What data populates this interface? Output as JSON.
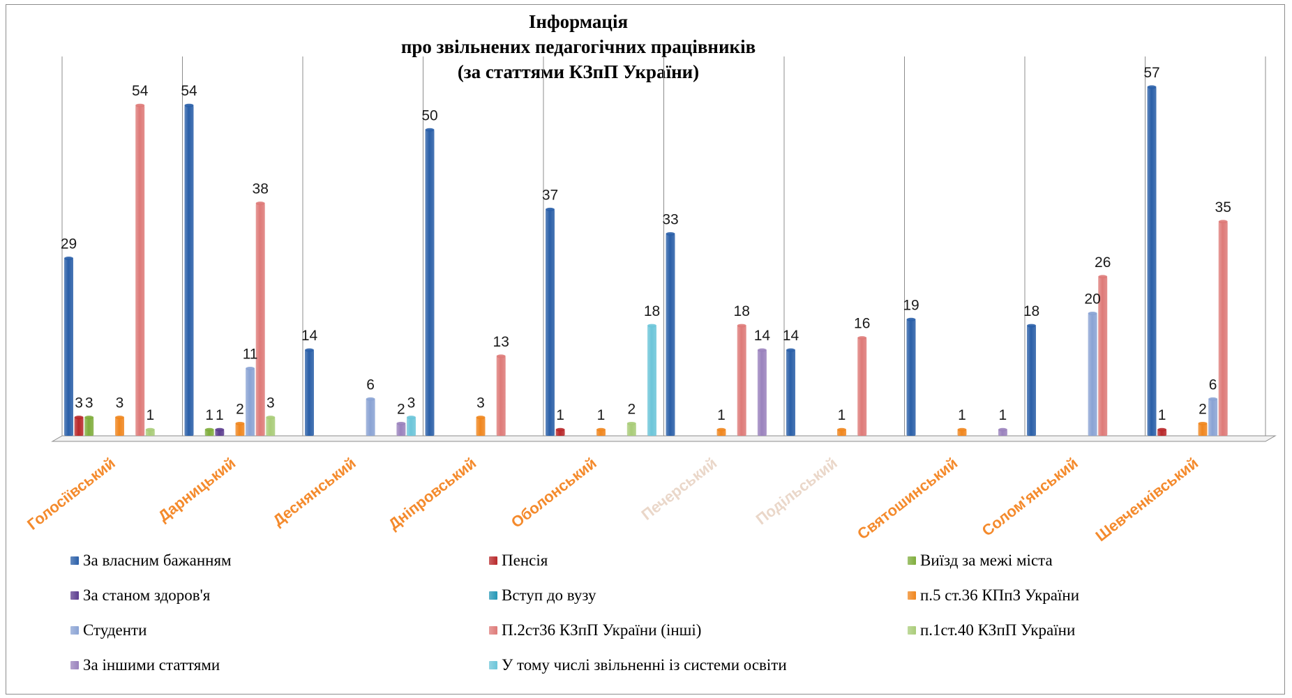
{
  "chart_data": {
    "type": "bar",
    "title_lines": [
      "Інформація",
      "про звільнених педагогічних працівників",
      "(за статтями КЗпП України)"
    ],
    "categories": [
      "Голосіївський",
      "Дарницький",
      "Деснянський",
      "Дніпровський",
      "Оболонський",
      "Печерський",
      "Подільський",
      "Святошинський",
      "Солом'янський",
      "Шевченківський"
    ],
    "category_colors": [
      "#f48a2c",
      "#f48a2c",
      "#f48a2c",
      "#f48a2c",
      "#f48a2c",
      "#ead7c9",
      "#ead7c9",
      "#f48a2c",
      "#f48a2c",
      "#f48a2c"
    ],
    "series": [
      {
        "name": "За власним бажанням",
        "color": "#2a5fa8",
        "values": [
          29,
          54,
          14,
          50,
          37,
          33,
          14,
          19,
          18,
          57
        ]
      },
      {
        "name": "Пенсія",
        "color": "#b8282a",
        "values": [
          3,
          0,
          0,
          0,
          1,
          0,
          0,
          0,
          0,
          1
        ]
      },
      {
        "name": "Виїзд за межі міста",
        "color": "#7fad3c",
        "values": [
          3,
          1,
          0,
          0,
          0,
          0,
          0,
          0,
          0,
          0
        ]
      },
      {
        "name": "За станом здоров'я",
        "color": "#5c3d8f",
        "values": [
          0,
          1,
          0,
          0,
          0,
          0,
          0,
          0,
          0,
          0
        ]
      },
      {
        "name": "Вступ до вузу",
        "color": "#2497b6",
        "values": [
          0,
          0,
          0,
          0,
          0,
          0,
          0,
          0,
          0,
          0
        ]
      },
      {
        "name": "п.5 ст.36 КПпЗ України",
        "color": "#f0861e",
        "values": [
          3,
          2,
          0,
          3,
          1,
          1,
          1,
          1,
          0,
          2
        ]
      },
      {
        "name": "Студенти",
        "color": "#8aa3d4",
        "values": [
          0,
          11,
          6,
          0,
          0,
          0,
          0,
          0,
          20,
          6
        ]
      },
      {
        "name": "П.2ст36 КЗпП України (інші)",
        "color": "#de7a78",
        "values": [
          54,
          38,
          0,
          13,
          0,
          18,
          16,
          0,
          26,
          35
        ]
      },
      {
        "name": "п.1ст.40 КЗпП України",
        "color": "#a9cc78",
        "values": [
          1,
          3,
          0,
          0,
          2,
          0,
          0,
          0,
          0,
          0
        ]
      },
      {
        "name": "За іншими статтями",
        "color": "#9a82bd",
        "values": [
          0,
          0,
          2,
          0,
          0,
          14,
          0,
          1,
          0,
          0
        ]
      },
      {
        "name": "У тому числі звільненні із системи освіти",
        "color": "#6cc5d9",
        "values": [
          0,
          0,
          3,
          0,
          18,
          0,
          0,
          0,
          0,
          0
        ]
      }
    ],
    "ylim": [
      0,
      60
    ],
    "legend_position": "bottom"
  }
}
